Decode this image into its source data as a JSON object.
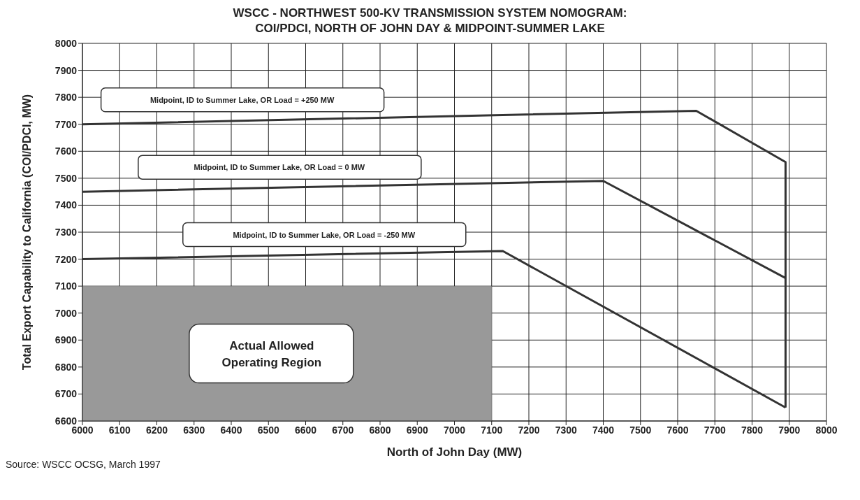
{
  "chart_data": {
    "type": "line",
    "title": "WSCC - NORTHWEST 500-KV TRANSMISSION SYSTEM NOMOGRAM:\nCOI/PDCI, NORTH OF JOHN DAY & MIDPOINT-SUMMER LAKE",
    "xlabel": "North of John Day (MW)",
    "ylabel": "Total Export Capability to California (COI/PDCI, MW)",
    "annotations": [
      "Source: WSCC OCSG, March 1997"
    ],
    "xlim": [
      6000,
      8000
    ],
    "xticks": [
      6000,
      6100,
      6200,
      6300,
      6400,
      6500,
      6600,
      6700,
      6800,
      6900,
      7000,
      7100,
      7200,
      7300,
      7400,
      7500,
      7600,
      7700,
      7800,
      7900,
      8000
    ],
    "ylim": [
      6600,
      8000
    ],
    "yticks": [
      6600,
      6700,
      6800,
      6900,
      7000,
      7100,
      7200,
      7300,
      7400,
      7500,
      7600,
      7700,
      7800,
      7900,
      8000
    ],
    "grid": true,
    "legend": false,
    "marker": "none",
    "line_style": "solid",
    "series": [
      {
        "type": "area",
        "name": "Actual Allowed\nOperating Region",
        "color": "#999999",
        "x": [
          6000,
          7100
        ],
        "values": [
          7100,
          7100
        ]
      },
      {
        "name": "Midpoint, ID to Summer Lake, OR Load = +250 MW",
        "color": "#333333",
        "x": [
          6000,
          7650,
          7890,
          7890
        ],
        "values": [
          7700,
          7750,
          7560,
          6650
        ]
      },
      {
        "name": "Midpoint, ID to Summer Lake, OR Load = 0 MW",
        "color": "#333333",
        "x": [
          6000,
          7400,
          7890
        ],
        "values": [
          7450,
          7490,
          7130
        ]
      },
      {
        "name": "Midpoint, ID to Summer Lake, OR Load = -250 MW",
        "color": "#333333",
        "x": [
          6000,
          7130,
          7890
        ],
        "values": [
          7200,
          7230,
          6650
        ]
      }
    ]
  }
}
